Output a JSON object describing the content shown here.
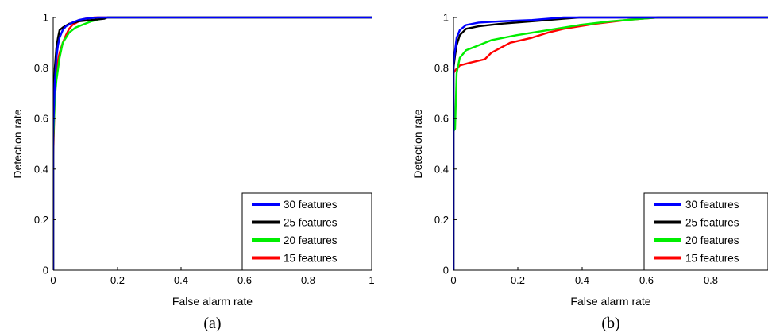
{
  "chart_data": [
    {
      "type": "line",
      "caption": "(a)",
      "xlabel": "False alarm rate",
      "ylabel": "Detection rate",
      "xlim": [
        0,
        1
      ],
      "ylim": [
        0,
        1
      ],
      "xticks": [
        "0",
        "0.2",
        "0.4",
        "0.6",
        "0.8",
        "1"
      ],
      "yticks": [
        "0",
        "0.2",
        "0.4",
        "0.6",
        "0.8",
        "1"
      ],
      "grid": false,
      "legend_position": "bottom-right",
      "series": [
        {
          "name": "30 features",
          "color": "#0000ff",
          "points": [
            [
              0,
              0
            ],
            [
              0,
              0.55
            ],
            [
              0.005,
              0.74
            ],
            [
              0.01,
              0.84
            ],
            [
              0.015,
              0.89
            ],
            [
              0.02,
              0.92
            ],
            [
              0.03,
              0.95
            ],
            [
              0.04,
              0.965
            ],
            [
              0.06,
              0.98
            ],
            [
              0.08,
              0.99
            ],
            [
              0.1,
              0.995
            ],
            [
              0.14,
              1
            ],
            [
              1,
              1
            ]
          ]
        },
        {
          "name": "25 features",
          "color": "#000000",
          "points": [
            [
              0,
              0
            ],
            [
              0,
              0.6
            ],
            [
              0.005,
              0.8
            ],
            [
              0.01,
              0.88
            ],
            [
              0.015,
              0.92
            ],
            [
              0.02,
              0.95
            ],
            [
              0.03,
              0.96
            ],
            [
              0.05,
              0.975
            ],
            [
              0.08,
              0.985
            ],
            [
              0.12,
              0.99
            ],
            [
              0.16,
              0.995
            ],
            [
              0.17,
              1
            ],
            [
              1,
              1
            ]
          ]
        },
        {
          "name": "20 features",
          "color": "#00ee00",
          "points": [
            [
              0,
              0
            ],
            [
              0,
              0.5
            ],
            [
              0.005,
              0.68
            ],
            [
              0.01,
              0.75
            ],
            [
              0.02,
              0.84
            ],
            [
              0.03,
              0.9
            ],
            [
              0.05,
              0.94
            ],
            [
              0.07,
              0.96
            ],
            [
              0.09,
              0.97
            ],
            [
              0.12,
              0.985
            ],
            [
              0.15,
              0.995
            ],
            [
              0.17,
              1
            ],
            [
              1,
              1
            ]
          ]
        },
        {
          "name": "15 features",
          "color": "#ff0000",
          "points": [
            [
              0,
              0
            ],
            [
              0,
              0.45
            ],
            [
              0.005,
              0.7
            ],
            [
              0.01,
              0.8
            ],
            [
              0.02,
              0.86
            ],
            [
              0.03,
              0.9
            ],
            [
              0.04,
              0.93
            ],
            [
              0.05,
              0.955
            ],
            [
              0.06,
              0.97
            ],
            [
              0.08,
              0.985
            ],
            [
              0.1,
              0.995
            ],
            [
              0.13,
              1
            ],
            [
              1,
              1
            ]
          ]
        }
      ]
    },
    {
      "type": "line",
      "caption": "(b)",
      "xlabel": "False alarm rate",
      "ylabel": "Detection rate",
      "xlim": [
        0,
        1
      ],
      "ylim": [
        0,
        1
      ],
      "xticks": [
        "0",
        "0.2",
        "0.4",
        "0.6",
        "0.8"
      ],
      "yticks": [
        "0",
        "0.2",
        "0.4",
        "0.6",
        "0.8",
        "1"
      ],
      "grid": false,
      "legend_position": "bottom-right",
      "series": [
        {
          "name": "30 features",
          "color": "#0000ff",
          "points": [
            [
              0,
              0
            ],
            [
              0,
              0.82
            ],
            [
              0.005,
              0.87
            ],
            [
              0.01,
              0.92
            ],
            [
              0.02,
              0.95
            ],
            [
              0.04,
              0.97
            ],
            [
              0.08,
              0.98
            ],
            [
              0.15,
              0.985
            ],
            [
              0.25,
              0.99
            ],
            [
              0.3,
              0.995
            ],
            [
              0.35,
              1
            ],
            [
              1,
              1
            ]
          ]
        },
        {
          "name": "25 features",
          "color": "#000000",
          "points": [
            [
              0,
              0
            ],
            [
              0,
              0.8
            ],
            [
              0.005,
              0.85
            ],
            [
              0.01,
              0.89
            ],
            [
              0.02,
              0.93
            ],
            [
              0.04,
              0.955
            ],
            [
              0.08,
              0.965
            ],
            [
              0.15,
              0.975
            ],
            [
              0.25,
              0.985
            ],
            [
              0.35,
              0.995
            ],
            [
              0.4,
              1
            ],
            [
              1,
              1
            ]
          ]
        },
        {
          "name": "20 features",
          "color": "#00ee00",
          "points": [
            [
              0,
              0
            ],
            [
              0,
              0.55
            ],
            [
              0.005,
              0.56
            ],
            [
              0.01,
              0.78
            ],
            [
              0.02,
              0.84
            ],
            [
              0.04,
              0.87
            ],
            [
              0.08,
              0.89
            ],
            [
              0.12,
              0.91
            ],
            [
              0.2,
              0.93
            ],
            [
              0.3,
              0.95
            ],
            [
              0.4,
              0.97
            ],
            [
              0.5,
              0.985
            ],
            [
              0.6,
              0.995
            ],
            [
              0.65,
              1
            ],
            [
              1,
              1
            ]
          ]
        },
        {
          "name": "15 features",
          "color": "#ff0000",
          "points": [
            [
              0,
              0
            ],
            [
              0,
              0.78
            ],
            [
              0.005,
              0.79
            ],
            [
              0.02,
              0.81
            ],
            [
              0.05,
              0.82
            ],
            [
              0.1,
              0.835
            ],
            [
              0.12,
              0.86
            ],
            [
              0.18,
              0.9
            ],
            [
              0.25,
              0.92
            ],
            [
              0.3,
              0.94
            ],
            [
              0.35,
              0.955
            ],
            [
              0.45,
              0.975
            ],
            [
              0.55,
              0.99
            ],
            [
              0.6,
              0.995
            ],
            [
              0.65,
              1
            ],
            [
              1,
              1
            ]
          ]
        }
      ]
    }
  ]
}
